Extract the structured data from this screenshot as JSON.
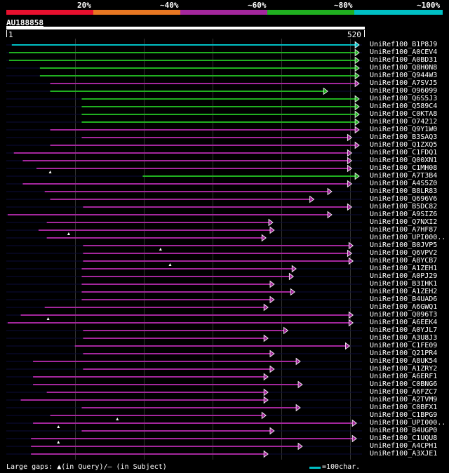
{
  "identity_scale": {
    "labels": [
      "20%",
      "~40%",
      "~60%",
      "~80%",
      "~100%"
    ],
    "colors": [
      "#e8102e",
      "#e87722",
      "#a4279d",
      "#20b020",
      "#00bfc4"
    ]
  },
  "query": {
    "name": "AU188858",
    "start": "1",
    "end": "520",
    "length": 520
  },
  "hits": [
    {
      "name": "UniRef100_B1P8J9",
      "start": 9,
      "end": 516,
      "color": "#00bfc4",
      "gaps": []
    },
    {
      "name": "UniRef100_A0CEV4",
      "start": 5,
      "end": 516,
      "color": "#20b020",
      "gaps": []
    },
    {
      "name": "UniRef100_A0BD31",
      "start": 5,
      "end": 516,
      "color": "#20b020",
      "gaps": []
    },
    {
      "name": "UniRef100_Q8H0N8",
      "start": 50,
      "end": 516,
      "color": "#20b020",
      "gaps": []
    },
    {
      "name": "UniRef100_Q944W3",
      "start": 50,
      "end": 516,
      "color": "#20b020",
      "gaps": []
    },
    {
      "name": "UniRef100_A7SVJ5",
      "start": 65,
      "end": 516,
      "color": "#a4279d",
      "gaps": []
    },
    {
      "name": "UniRef100_O96099",
      "start": 65,
      "end": 470,
      "color": "#20b020",
      "gaps": []
    },
    {
      "name": "UniRef100_Q6S5J3",
      "start": 111,
      "end": 516,
      "color": "#20b020",
      "gaps": []
    },
    {
      "name": "UniRef100_Q589C4",
      "start": 111,
      "end": 516,
      "color": "#20b020",
      "gaps": []
    },
    {
      "name": "UniRef100_C0KTA8",
      "start": 111,
      "end": 516,
      "color": "#20b020",
      "gaps": []
    },
    {
      "name": "UniRef100_O74212",
      "start": 111,
      "end": 516,
      "color": "#20b020",
      "gaps": []
    },
    {
      "name": "UniRef100_Q9Y1W0",
      "start": 65,
      "end": 516,
      "color": "#a4279d",
      "gaps": []
    },
    {
      "name": "UniRef100_B3SAQ3",
      "start": 111,
      "end": 505,
      "color": "#a4279d",
      "gaps": []
    },
    {
      "name": "UniRef100_Q1ZXQ5",
      "start": 65,
      "end": 516,
      "color": "#a4279d",
      "gaps": []
    },
    {
      "name": "UniRef100_C1FDQ1",
      "start": 12,
      "end": 505,
      "color": "#a4279d",
      "gaps": []
    },
    {
      "name": "UniRef100_Q00XN1",
      "start": 25,
      "end": 505,
      "color": "#a4279d",
      "gaps": []
    },
    {
      "name": "UniRef100_C1MH08",
      "start": 45,
      "end": 505,
      "color": "#a4279d",
      "gaps": [
        65
      ]
    },
    {
      "name": "UniRef100_A7T3B4",
      "start": 200,
      "end": 516,
      "color": "#20b020",
      "gaps": []
    },
    {
      "name": "UniRef100_A4S5Z0",
      "start": 25,
      "end": 505,
      "color": "#a4279d",
      "gaps": []
    },
    {
      "name": "UniRef100_B8LR83",
      "start": 57,
      "end": 476,
      "color": "#a4279d",
      "gaps": []
    },
    {
      "name": "UniRef100_Q696V6",
      "start": 65,
      "end": 450,
      "color": "#a4279d",
      "gaps": []
    },
    {
      "name": "UniRef100_B5DC82",
      "start": 113,
      "end": 505,
      "color": "#a4279d",
      "gaps": []
    },
    {
      "name": "UniRef100_A9SIZ6",
      "start": 3,
      "end": 476,
      "color": "#a4279d",
      "gaps": []
    },
    {
      "name": "UniRef100_Q7NXI2",
      "start": 60,
      "end": 390,
      "color": "#a4279d",
      "gaps": []
    },
    {
      "name": "UniRef100_A7HF87",
      "start": 48,
      "end": 392,
      "color": "#a4279d",
      "gaps": [
        92
      ]
    },
    {
      "name": "UniRef100_UPI000..",
      "start": 60,
      "end": 380,
      "color": "#a4279d",
      "gaps": []
    },
    {
      "name": "UniRef100_B0JVP5",
      "start": 113,
      "end": 507,
      "color": "#a4279d",
      "gaps": [
        226
      ]
    },
    {
      "name": "UniRef100_Q6VPV2",
      "start": 113,
      "end": 505,
      "color": "#a4279d",
      "gaps": []
    },
    {
      "name": "UniRef100_A8YCB7",
      "start": 113,
      "end": 507,
      "color": "#a4279d",
      "gaps": [
        240
      ]
    },
    {
      "name": "UniRef100_A1ZEH1",
      "start": 111,
      "end": 424,
      "color": "#a4279d",
      "gaps": []
    },
    {
      "name": "UniRef100_A0PJ29",
      "start": 111,
      "end": 420,
      "color": "#a4279d",
      "gaps": []
    },
    {
      "name": "UniRef100_B3IHK1",
      "start": 111,
      "end": 392,
      "color": "#a4279d",
      "gaps": []
    },
    {
      "name": "UniRef100_A1ZEH2",
      "start": 111,
      "end": 422,
      "color": "#a4279d",
      "gaps": []
    },
    {
      "name": "UniRef100_B4UAD6",
      "start": 111,
      "end": 392,
      "color": "#a4279d",
      "gaps": []
    },
    {
      "name": "UniRef100_A6GWQ1",
      "start": 57,
      "end": 383,
      "color": "#a4279d",
      "gaps": []
    },
    {
      "name": "UniRef100_Q096T3",
      "start": 22,
      "end": 507,
      "color": "#a4279d",
      "gaps": [
        62
      ]
    },
    {
      "name": "UniRef100_A6EEK4",
      "start": 3,
      "end": 507,
      "color": "#a4279d",
      "gaps": []
    },
    {
      "name": "UniRef100_A0YJL7",
      "start": 113,
      "end": 412,
      "color": "#a4279d",
      "gaps": []
    },
    {
      "name": "UniRef100_A3U8J3",
      "start": 113,
      "end": 383,
      "color": "#a4279d",
      "gaps": []
    },
    {
      "name": "UniRef100_C1FE09",
      "start": 101,
      "end": 502,
      "color": "#a4279d",
      "gaps": []
    },
    {
      "name": "UniRef100_Q21PR4",
      "start": 113,
      "end": 392,
      "color": "#a4279d",
      "gaps": []
    },
    {
      "name": "UniRef100_A8UK54",
      "start": 40,
      "end": 430,
      "color": "#a4279d",
      "gaps": []
    },
    {
      "name": "UniRef100_A1ZRY2",
      "start": 113,
      "end": 392,
      "color": "#a4279d",
      "gaps": []
    },
    {
      "name": "UniRef100_A6ERF1",
      "start": 40,
      "end": 383,
      "color": "#a4279d",
      "gaps": []
    },
    {
      "name": "UniRef100_C0BNG6",
      "start": 40,
      "end": 433,
      "color": "#a4279d",
      "gaps": []
    },
    {
      "name": "UniRef100_A6FZC7",
      "start": 60,
      "end": 383,
      "color": "#a4279d",
      "gaps": []
    },
    {
      "name": "UniRef100_A2TVM9",
      "start": 22,
      "end": 383,
      "color": "#a4279d",
      "gaps": []
    },
    {
      "name": "UniRef100_C0BFX1",
      "start": 111,
      "end": 430,
      "color": "#a4279d",
      "gaps": []
    },
    {
      "name": "UniRef100_C1BPG9",
      "start": 65,
      "end": 380,
      "color": "#a4279d",
      "gaps": [
        163
      ]
    },
    {
      "name": "UniRef100_UPI000..",
      "start": 40,
      "end": 512,
      "color": "#a4279d",
      "gaps": [
        77
      ]
    },
    {
      "name": "UniRef100_B4UGP0",
      "start": 111,
      "end": 392,
      "color": "#a4279d",
      "gaps": []
    },
    {
      "name": "UniRef100_C1UQU8",
      "start": 37,
      "end": 512,
      "color": "#a4279d",
      "gaps": [
        77
      ]
    },
    {
      "name": "UniRef100_A4CPH1",
      "start": 37,
      "end": 433,
      "color": "#a4279d",
      "gaps": []
    },
    {
      "name": "UniRef100_A3XJE1",
      "start": 37,
      "end": 383,
      "color": "#a4279d",
      "gaps": []
    }
  ],
  "legend": {
    "gaps_text": "Large gaps: ▲(in Query)/— (in Subject)",
    "scale_text": "=100char."
  }
}
